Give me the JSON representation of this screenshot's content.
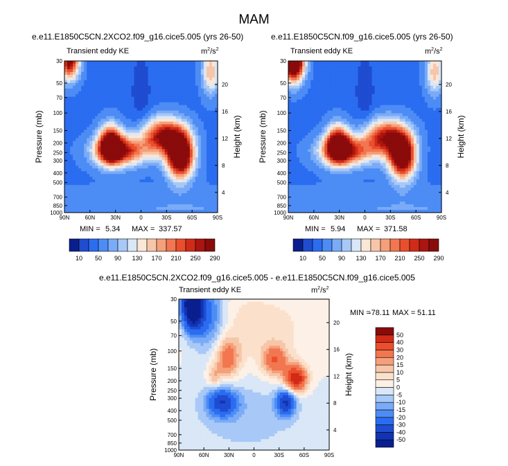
{
  "page": {
    "title": "MAM"
  },
  "panels": [
    {
      "id": "p1",
      "title": "e.e11.E1850C5CN.2XCO2.f09_g16.cice5.005 (yrs 26-50)",
      "left_label": "Transient eddy KE",
      "units_base": "m",
      "units_exp1": "2",
      "units_mid": "/s",
      "units_exp2": "2",
      "ylabel": "Pressure (mb)",
      "ylabel_right": "Height (km)",
      "min_label": "MIN =",
      "min_value": "5.34",
      "max_label": "MAX =",
      "max_value": "337.57"
    },
    {
      "id": "p2",
      "title": "e.e11.E1850C5CN.f09_g16.cice5.005 (yrs 26-50)",
      "left_label": "Transient eddy KE",
      "units_base": "m",
      "units_exp1": "2",
      "units_mid": "/s",
      "units_exp2": "2",
      "ylabel": "Pressure (mb)",
      "ylabel_right": "Height (km)",
      "min_label": "MIN =",
      "min_value": "5.94",
      "max_label": "MAX =",
      "max_value": "371.58"
    },
    {
      "id": "p3",
      "title": "e.e11.E1850C5CN.2XCO2.f09_g16.cice5.005 - e.e11.E1850C5CN.f09_g16.cice5.005",
      "left_label": "Transient eddy KE",
      "units_base": "m",
      "units_exp1": "2",
      "units_mid": "/s",
      "units_exp2": "2",
      "ylabel": "Pressure (mb)",
      "ylabel_right": "Height (km)",
      "min_label": "MIN =",
      "min_value": "-78.11",
      "max_label": "MAX =",
      "max_value": "51.11"
    }
  ],
  "chart_data": [
    {
      "type": "heatmap",
      "panel": "p1",
      "title": "e.e11.E1850C5CN.2XCO2.f09_g16.cice5.005 (yrs 26-50)",
      "xlabel": "",
      "ylabel": "Pressure (mb)",
      "ylabel_right": "Height (km)",
      "x_ticks": [
        "90N",
        "60N",
        "30N",
        "0",
        "30S",
        "60S",
        "90S"
      ],
      "y_ticks": [
        "30",
        "50",
        "70",
        "100",
        "150",
        "200",
        "250",
        "300",
        "400",
        "500",
        "700",
        "850",
        "1000"
      ],
      "y_right_ticks": [
        "20",
        "16",
        "12",
        "8",
        "4"
      ],
      "xlim": [
        90,
        -90
      ],
      "ylim": [
        1000,
        30
      ],
      "min": 5.34,
      "max": 337.57,
      "features": [
        {
          "lat": 36,
          "p": 205,
          "value": 255,
          "slat": 13,
          "slp": 0.42
        },
        {
          "lat": 24,
          "p": 240,
          "value": 215,
          "slat": 30,
          "slp": 0.33
        },
        {
          "lat": -46,
          "p": 265,
          "value": 335,
          "slat": 15,
          "slp": 0.5
        },
        {
          "lat": -26,
          "p": 170,
          "value": 225,
          "slat": 24,
          "slp": 0.4
        },
        {
          "lat": 84,
          "p": 30,
          "value": 240,
          "slat": 11,
          "slp": 0.42
        },
        {
          "lat": -82,
          "p": 38,
          "value": 125,
          "slat": 10,
          "slp": 0.5
        }
      ]
    },
    {
      "type": "heatmap",
      "panel": "p2",
      "title": "e.e11.E1850C5CN.f09_g16.cice5.005 (yrs 26-50)",
      "xlabel": "",
      "ylabel": "Pressure (mb)",
      "ylabel_right": "Height (km)",
      "x_ticks": [
        "90N",
        "60N",
        "30N",
        "0",
        "30S",
        "60S",
        "90S"
      ],
      "y_ticks": [
        "30",
        "50",
        "70",
        "100",
        "150",
        "200",
        "250",
        "300",
        "400",
        "500",
        "700",
        "850",
        "1000"
      ],
      "y_right_ticks": [
        "20",
        "16",
        "12",
        "8",
        "4"
      ],
      "xlim": [
        90,
        -90
      ],
      "ylim": [
        1000,
        30
      ],
      "min": 5.94,
      "max": 371.58,
      "features": [
        {
          "lat": 32,
          "p": 205,
          "value": 240,
          "slat": 13,
          "slp": 0.42
        },
        {
          "lat": 22,
          "p": 240,
          "value": 205,
          "slat": 30,
          "slp": 0.33
        },
        {
          "lat": -44,
          "p": 270,
          "value": 300,
          "slat": 15,
          "slp": 0.5
        },
        {
          "lat": -24,
          "p": 175,
          "value": 210,
          "slat": 24,
          "slp": 0.4
        },
        {
          "lat": 84,
          "p": 30,
          "value": 370,
          "slat": 12,
          "slp": 0.45
        },
        {
          "lat": -82,
          "p": 38,
          "value": 120,
          "slat": 10,
          "slp": 0.5
        }
      ]
    },
    {
      "type": "heatmap",
      "panel": "p3",
      "title": "e.e11.E1850C5CN.2XCO2.f09_g16.cice5.005 - e.e11.E1850C5CN.f09_g16.cice5.005",
      "xlabel": "",
      "ylabel": "Pressure (mb)",
      "ylabel_right": "Height (km)",
      "x_ticks": [
        "90N",
        "60N",
        "30N",
        "0",
        "30S",
        "60S",
        "90S"
      ],
      "y_ticks": [
        "30",
        "50",
        "70",
        "100",
        "150",
        "200",
        "250",
        "300",
        "400",
        "500",
        "700",
        "850",
        "1000"
      ],
      "y_right_ticks": [
        "20",
        "16",
        "12",
        "8",
        "4"
      ],
      "xlim": [
        90,
        -90
      ],
      "ylim": [
        1000,
        30
      ],
      "min": -78.11,
      "max": 51.11,
      "features": [
        {
          "lat": 74,
          "p": 34,
          "value": -75,
          "slat": 12,
          "slp": 0.55
        },
        {
          "lat": 55,
          "p": 45,
          "value": -25,
          "slat": 20,
          "slp": 0.8
        },
        {
          "lat": 38,
          "p": 330,
          "value": -35,
          "slat": 18,
          "slp": 0.32
        },
        {
          "lat": -38,
          "p": 330,
          "value": -38,
          "slat": 11,
          "slp": 0.3
        },
        {
          "lat": -50,
          "p": 190,
          "value": 50,
          "slat": 13,
          "slp": 0.3
        },
        {
          "lat": -25,
          "p": 125,
          "value": 28,
          "slat": 15,
          "slp": 0.35
        },
        {
          "lat": 32,
          "p": 120,
          "value": 26,
          "slat": 14,
          "slp": 0.45
        },
        {
          "lat": 48,
          "p": 180,
          "value": 15,
          "slat": 8,
          "slp": 0.25
        },
        {
          "lat": 0,
          "p": 60,
          "value": 8,
          "slat": 70,
          "slp": 0.9
        },
        {
          "lat": 10,
          "p": 450,
          "value": -8,
          "slat": 70,
          "slp": 0.9
        }
      ]
    }
  ],
  "colorbars": [
    {
      "panel": "p1",
      "colors": [
        "#0a1f8f",
        "#1f4cd1",
        "#2b6df0",
        "#4d8cf5",
        "#7aabf7",
        "#a8c8f7",
        "#d9e7f7",
        "#fbe7d7",
        "#f7c6a9",
        "#f5a07a",
        "#f27650",
        "#ea4e2c",
        "#d12b17",
        "#ab1410",
        "#8a0b0b"
      ],
      "labels": [
        "10",
        "50",
        "90",
        "130",
        "170",
        "210",
        "250",
        "290"
      ]
    },
    {
      "panel": "p2",
      "colors": [
        "#0a1f8f",
        "#1f4cd1",
        "#2b6df0",
        "#4d8cf5",
        "#7aabf7",
        "#a8c8f7",
        "#d9e7f7",
        "#fbe7d7",
        "#f7c6a9",
        "#f5a07a",
        "#f27650",
        "#ea4e2c",
        "#d12b17",
        "#ab1410",
        "#8a0b0b"
      ],
      "labels": [
        "10",
        "50",
        "90",
        "130",
        "170",
        "210",
        "250",
        "290"
      ]
    },
    {
      "panel": "p3",
      "colors": [
        "#0a1f8f",
        "#1233b5",
        "#1f4cd1",
        "#2b6df0",
        "#4d8cf5",
        "#7aabf7",
        "#a8c8f7",
        "#d9e7f7",
        "#fdf0e6",
        "#fbe1cc",
        "#f7c6a9",
        "#f5a07a",
        "#f27650",
        "#ea4e2c",
        "#d12b17",
        "#8a0b0b"
      ],
      "labels": [
        "-50",
        "-40",
        "-30",
        "-20",
        "-15",
        "-10",
        "-5",
        "0",
        "5",
        "10",
        "15",
        "20",
        "30",
        "40",
        "50"
      ]
    }
  ]
}
